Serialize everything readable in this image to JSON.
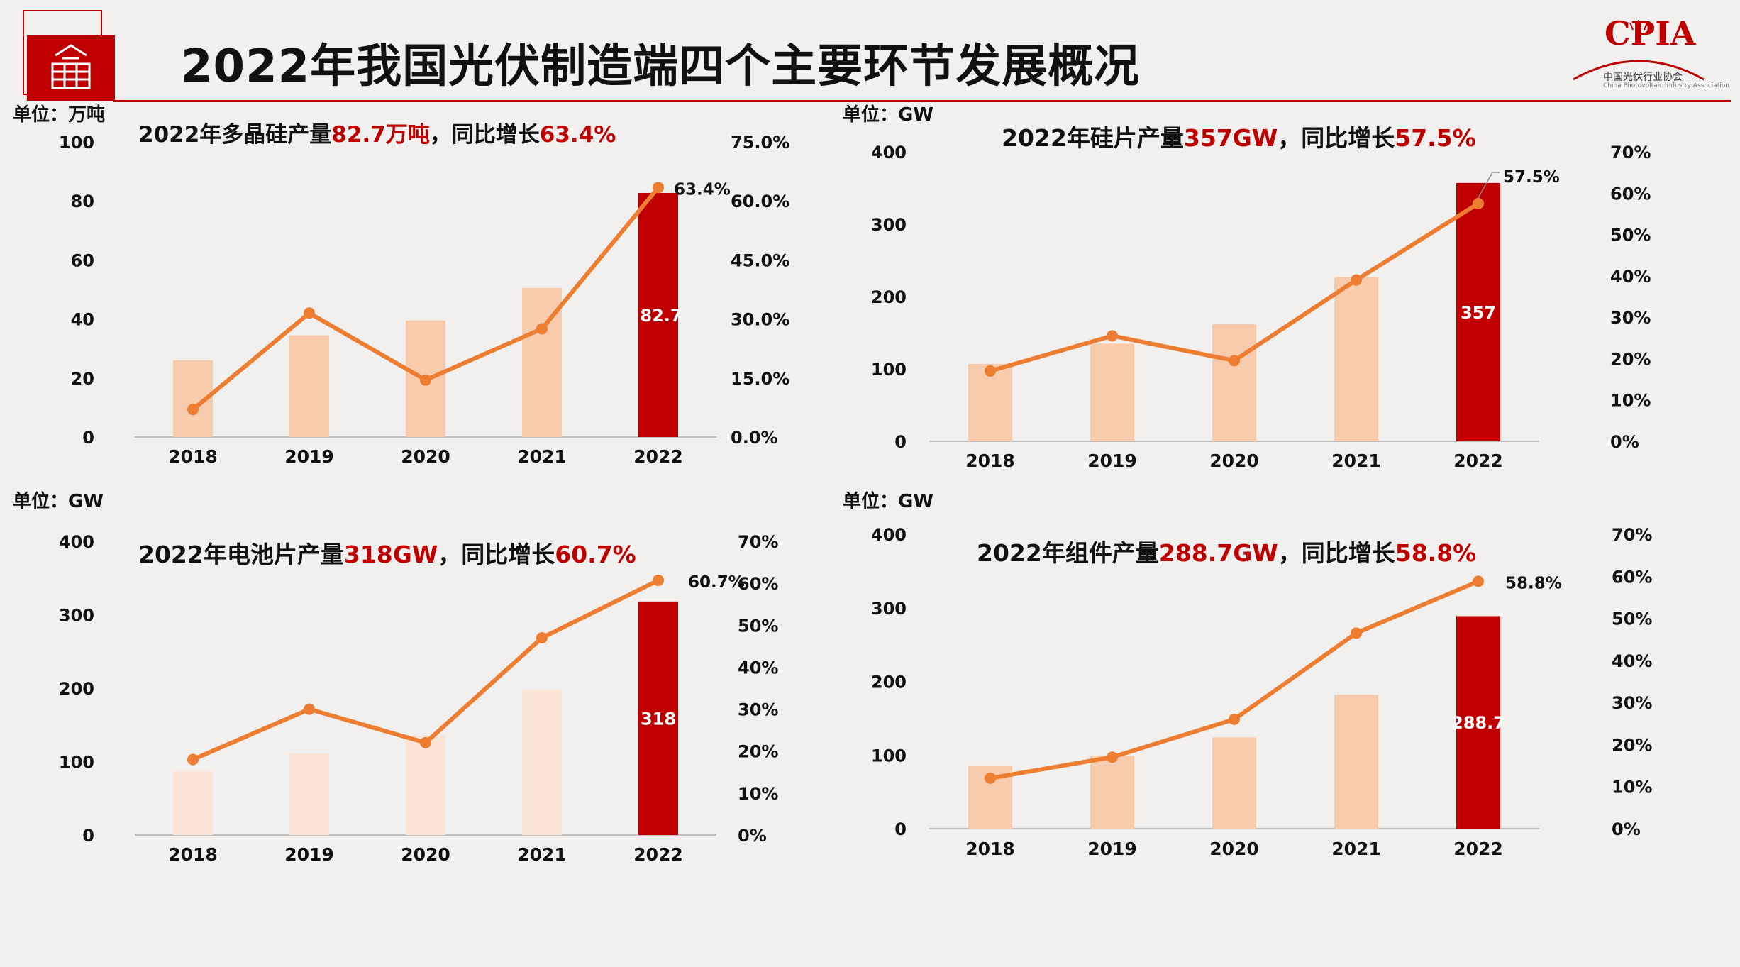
{
  "page": {
    "title": "2022年我国光伏制造端四个主要环节发展概况",
    "logo": {
      "text": "CPIA",
      "subtitle": "中国光伏行业协会",
      "subtitle_en": "China Photovoltaic Industry Association"
    }
  },
  "colors": {
    "accent": "#c00000",
    "line": "#ed7d31",
    "bar_light": "#f8cbad",
    "bar_lighter": "#fbe5d6",
    "text": "#111111"
  },
  "chart_data": [
    {
      "type": "bar",
      "name": "polysilicon",
      "title_parts": [
        "2022年多晶硅产量",
        "82.7万吨",
        "，同比增长",
        "63.4%"
      ],
      "unit": "单位：万吨",
      "categories": [
        "2018",
        "2019",
        "2020",
        "2021",
        "2022"
      ],
      "values": [
        26,
        34.5,
        39.5,
        50.5,
        82.7
      ],
      "growth": [
        7,
        31.5,
        14.5,
        27.5,
        63.4
      ],
      "bar_label": "82.7",
      "growth_label": "63.4%",
      "ylim": [
        0,
        100
      ],
      "yticks": [
        "0",
        "20",
        "40",
        "60",
        "80",
        "100"
      ],
      "y2lim": [
        0,
        75
      ],
      "y2ticks": [
        "0.0%",
        "15.0%",
        "30.0%",
        "45.0%",
        "60.0%",
        "75.0%"
      ]
    },
    {
      "type": "bar",
      "name": "wafer",
      "title_parts": [
        "2022年硅片产量",
        "357GW",
        "，同比增长",
        "57.5%"
      ],
      "unit": "单位：GW",
      "categories": [
        "2018",
        "2019",
        "2020",
        "2021",
        "2022"
      ],
      "values": [
        107,
        135,
        162,
        227,
        357
      ],
      "growth": [
        17,
        25.5,
        19.5,
        39,
        57.5
      ],
      "bar_label": "357",
      "growth_label": "57.5%",
      "ylim": [
        0,
        400
      ],
      "yticks": [
        "0",
        "100",
        "200",
        "300",
        "400"
      ],
      "y2lim": [
        0,
        70
      ],
      "y2ticks": [
        "0%",
        "10%",
        "20%",
        "30%",
        "40%",
        "50%",
        "60%",
        "70%"
      ]
    },
    {
      "type": "bar",
      "name": "cell",
      "title_parts": [
        "2022年电池片产量",
        "318GW",
        "，同比增长",
        "60.7%"
      ],
      "unit": "单位：GW",
      "categories": [
        "2018",
        "2019",
        "2020",
        "2021",
        "2022"
      ],
      "values": [
        87,
        111,
        135,
        198,
        318
      ],
      "growth": [
        18,
        30,
        22,
        47,
        60.7
      ],
      "bar_label": "318",
      "growth_label": "60.7%",
      "ylim": [
        0,
        400
      ],
      "yticks": [
        "0",
        "100",
        "200",
        "300",
        "400"
      ],
      "y2lim": [
        0,
        70
      ],
      "y2ticks": [
        "0%",
        "10%",
        "20%",
        "30%",
        "40%",
        "50%",
        "60%",
        "70%"
      ]
    },
    {
      "type": "bar",
      "name": "module",
      "title_parts": [
        "2022年组件产量",
        "288.7GW",
        "，同比增长",
        "58.8%"
      ],
      "unit": "单位：GW",
      "categories": [
        "2018",
        "2019",
        "2020",
        "2021",
        "2022"
      ],
      "values": [
        85,
        99,
        124,
        182,
        288.7
      ],
      "growth": [
        12,
        17,
        26,
        46.5,
        58.8
      ],
      "bar_label": "288.7",
      "growth_label": "58.8%",
      "ylim": [
        0,
        400
      ],
      "yticks": [
        "0",
        "100",
        "200",
        "300",
        "400"
      ],
      "y2lim": [
        0,
        70
      ],
      "y2ticks": [
        "0%",
        "10%",
        "20%",
        "30%",
        "40%",
        "50%",
        "60%",
        "70%"
      ]
    }
  ]
}
